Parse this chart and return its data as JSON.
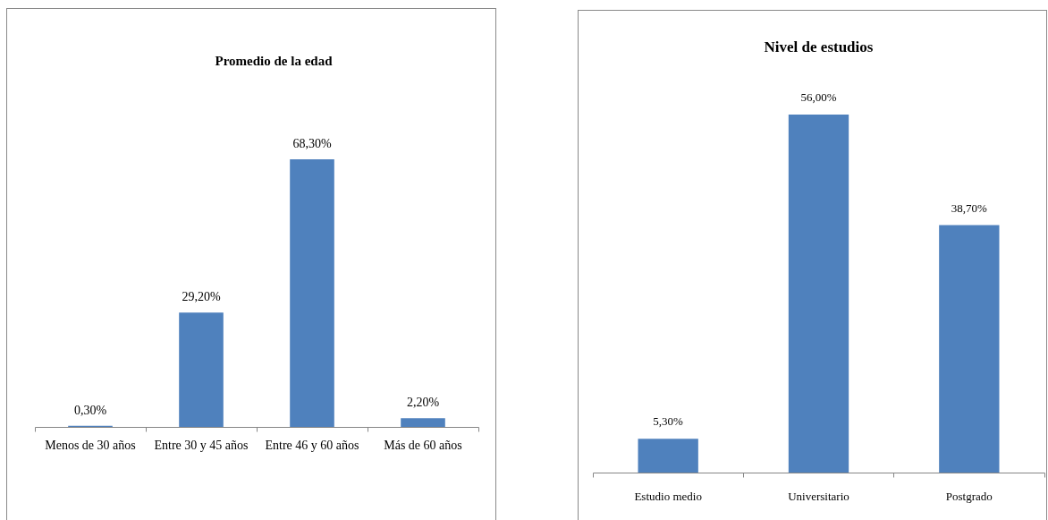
{
  "chart_data": [
    {
      "type": "bar",
      "title": "Promedio de la edad",
      "categories": [
        "Menos de 30 años",
        "Entre 30 y 45 años",
        "Entre 46 y 60 años",
        "Más de 60 años"
      ],
      "values": [
        0.3,
        29.2,
        68.3,
        2.2
      ],
      "color": "#4f81bd",
      "value_labels": [
        "0,30%",
        "29,20%",
        "68,30%",
        "2,20%"
      ]
    },
    {
      "type": "bar",
      "title": "Nivel de estudios",
      "categories": [
        "Estudio medio",
        "Universitario",
        "Postgrado"
      ],
      "values": [
        5.3,
        56.0,
        38.7
      ],
      "color": "#4f81bd",
      "value_labels": [
        "5,30%",
        "56,00%",
        "38,70%"
      ]
    }
  ]
}
